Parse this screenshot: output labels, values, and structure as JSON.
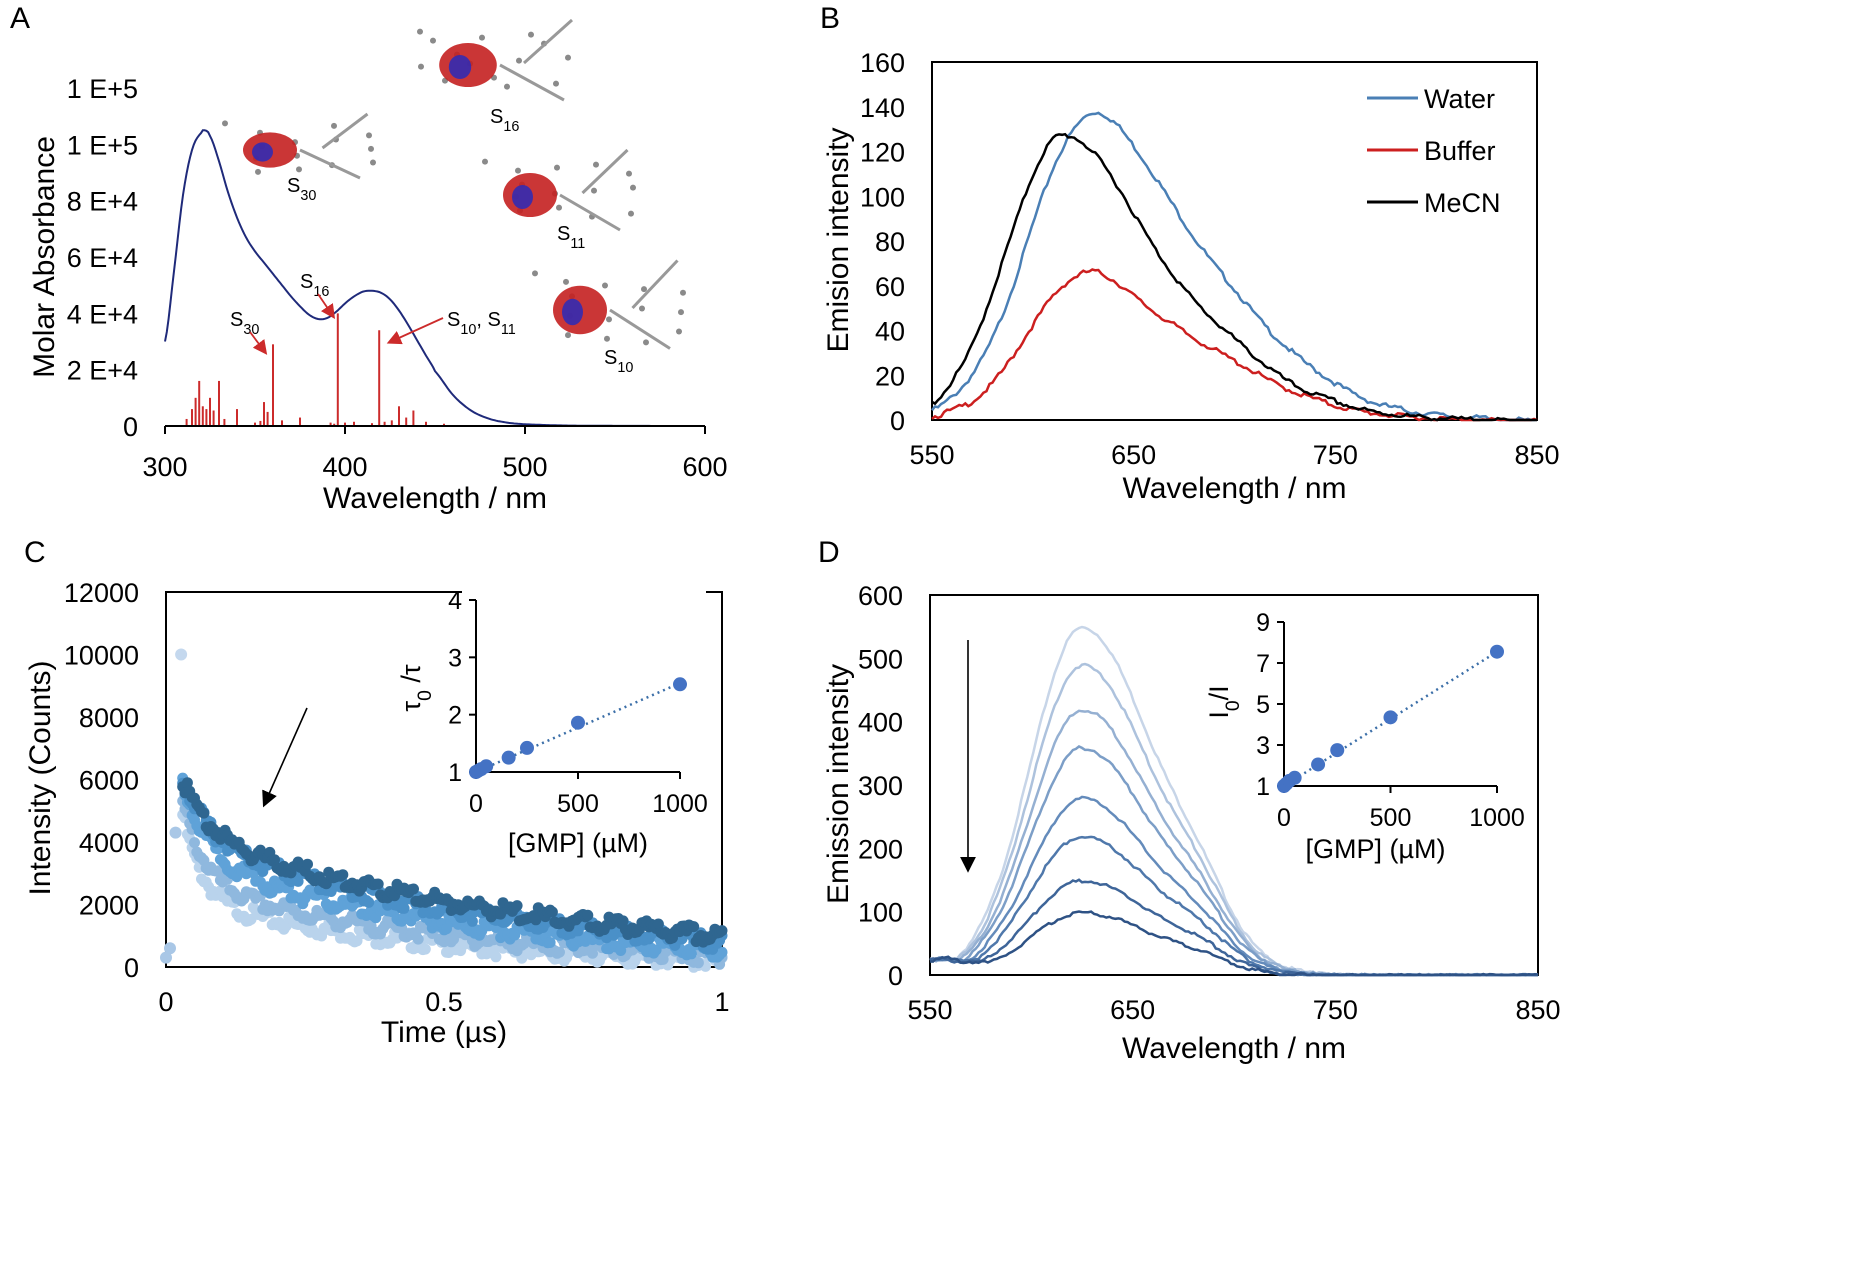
{
  "colors": {
    "absorbance": "#1f2a7a",
    "sticks": "#cc2b2b",
    "water": "#4a7fb5",
    "buffer": "#cc1f1f",
    "mecn": "#000000",
    "inset_points": "#4472c4"
  },
  "chart_data": [
    {
      "panel": "A",
      "type": "line",
      "xlabel": "Wavelength / nm",
      "ylabel": "Molar Absorbance",
      "xlim": [
        300,
        600
      ],
      "ylim": [
        0,
        120000
      ],
      "xticks": [
        "300",
        "400",
        "500",
        "600"
      ],
      "yticks": [
        "0",
        "2 E+4",
        "4 E+4",
        "6 E+4",
        "8 E+4",
        "1 E+5",
        "1 E+5"
      ],
      "series": [
        {
          "x": [
            300,
            305,
            310,
            315,
            320,
            322,
            325,
            330,
            335,
            340,
            345,
            350,
            355,
            360,
            365,
            370,
            375,
            380,
            385,
            390,
            395,
            400,
            405,
            410,
            415,
            420,
            425,
            430,
            435,
            440,
            445,
            450,
            460,
            470,
            480,
            490,
            500,
            520,
            540,
            560,
            580,
            600
          ],
          "values": [
            30000,
            55000,
            82000,
            98000,
            104000,
            105000,
            103000,
            94000,
            83000,
            74000,
            67000,
            62000,
            58000,
            54000,
            50000,
            46000,
            42500,
            39500,
            38000,
            38300,
            40500,
            43500,
            46000,
            47700,
            48000,
            47300,
            45000,
            41000,
            36000,
            30500,
            25000,
            19500,
            11000,
            5500,
            2600,
            1200,
            600,
            200,
            80,
            30,
            10,
            0
          ]
        }
      ],
      "sticks": {
        "x": [
          312,
          315,
          317,
          319,
          321,
          323,
          325,
          327,
          330,
          333,
          340,
          350,
          353,
          355,
          357,
          360,
          365,
          375,
          392,
          394,
          396,
          400,
          405,
          415,
          419,
          422,
          426,
          430,
          434,
          438,
          445,
          455
        ],
        "values": [
          2500,
          6000,
          10000,
          16000,
          7000,
          6000,
          10000,
          5500,
          16000,
          2500,
          6000,
          1200,
          1800,
          8500,
          5000,
          29000,
          2000,
          3000,
          1200,
          800,
          40000,
          1200,
          1500,
          1000,
          34000,
          1500,
          2000,
          7000,
          3000,
          5500,
          1500,
          800
        ]
      },
      "annotations": [
        {
          "base": "S",
          "sub": "30"
        },
        {
          "base": "S",
          "sub": "16"
        },
        {
          "base": "S",
          "sub": "10",
          "rest": ", ",
          "base2": "S",
          "sub2": "11"
        }
      ],
      "structure_labels": [
        {
          "base": "S",
          "sub": "30"
        },
        {
          "base": "S",
          "sub": "16"
        },
        {
          "base": "S",
          "sub": "11"
        },
        {
          "base": "S",
          "sub": "10"
        }
      ]
    },
    {
      "panel": "B",
      "type": "line",
      "xlabel": "Wavelength / nm",
      "ylabel": "Emision intensity",
      "xlim": [
        550,
        850
      ],
      "ylim": [
        0,
        160
      ],
      "xticks": [
        "550",
        "650",
        "750",
        "850"
      ],
      "yticks": [
        "0",
        "20",
        "40",
        "60",
        "80",
        "100",
        "120",
        "140",
        "160"
      ],
      "legend": "top-right",
      "categories_x": [
        550,
        560,
        570,
        580,
        590,
        600,
        610,
        620,
        630,
        640,
        650,
        660,
        670,
        680,
        690,
        700,
        710,
        720,
        730,
        740,
        750,
        760,
        770,
        780,
        790,
        800,
        810,
        820,
        830,
        840,
        850
      ],
      "series": [
        {
          "name": "Water",
          "values": [
            5,
            11,
            21,
            37,
            60,
            88,
            113,
            130,
            138,
            134,
            123,
            110,
            96,
            82,
            70,
            59,
            48,
            38,
            30,
            23,
            17,
            12,
            8,
            6,
            4,
            3,
            2,
            1.5,
            1,
            0.5,
            0
          ]
        },
        {
          "name": "Buffer",
          "values": [
            2,
            5,
            9,
            17,
            29,
            43,
            56,
            64,
            67,
            63,
            56,
            49,
            43,
            37,
            32,
            27,
            22,
            17,
            13,
            10,
            7,
            5,
            3.5,
            2.5,
            1.8,
            1.2,
            0.8,
            0.5,
            0.3,
            0.1,
            0
          ]
        },
        {
          "name": "MeCN",
          "values": [
            8,
            18,
            34,
            58,
            85,
            110,
            126,
            127,
            120,
            108,
            93,
            78,
            65,
            54,
            45,
            37,
            29,
            22,
            16,
            12,
            9,
            6,
            4,
            3,
            2,
            1.5,
            1,
            0.6,
            0.3,
            0.1,
            0
          ]
        }
      ]
    },
    {
      "panel": "C",
      "type": "scatter",
      "xlabel": "Time (µs)",
      "ylabel": "Intensity (Counts)",
      "xlim": [
        0,
        1
      ],
      "ylim": [
        0,
        12000
      ],
      "xticks": [
        "0",
        "0.5",
        "1"
      ],
      "yticks": [
        "0",
        "2000",
        "4000",
        "6000",
        "8000",
        "10000",
        "12000"
      ],
      "decays": [
        {
          "peak": 6300,
          "amp1": 1800,
          "tau1": 0.05,
          "amp2": 4300,
          "tau2": 0.72,
          "color": "#2f6690"
        },
        {
          "peak": 6400,
          "amp1": 2100,
          "tau1": 0.05,
          "amp2": 4100,
          "tau2": 0.65,
          "color": "#4a90c8"
        },
        {
          "peak": 6000,
          "amp1": 2600,
          "tau1": 0.05,
          "amp2": 3400,
          "tau2": 0.6,
          "color": "#5fa2d8"
        },
        {
          "peak": 5500,
          "amp1": 2700,
          "tau1": 0.04,
          "amp2": 2700,
          "tau2": 0.55,
          "color": "#8fb8de"
        },
        {
          "peak": 5000,
          "amp1": 2800,
          "tau1": 0.035,
          "amp2": 2200,
          "tau2": 0.5,
          "color": "#b9d3ec"
        }
      ],
      "outliers": {
        "x": [
          0.0,
          0.0,
          0.01,
          0.02
        ],
        "values": [
          600,
          300,
          4300,
          10000
        ]
      },
      "inset": {
        "type": "scatter",
        "xlabel": "[GMP] (µM)",
        "ylabel_base": "τ",
        "ylabel_sub": "0",
        "ylabel_rest": " /τ",
        "xlim": [
          0,
          1000
        ],
        "ylim": [
          1,
          4
        ],
        "xticks": [
          "0",
          "500",
          "1000"
        ],
        "yticks": [
          "1",
          "2",
          "3",
          "4"
        ],
        "x": [
          0,
          10,
          25,
          50,
          160,
          250,
          500,
          1000
        ],
        "values": [
          1.0,
          1.02,
          1.05,
          1.1,
          1.25,
          1.42,
          1.86,
          2.53
        ],
        "fit": {
          "x": [
            0,
            1000
          ],
          "values": [
            1.0,
            2.55
          ]
        }
      }
    },
    {
      "panel": "D",
      "type": "line",
      "xlabel": "Wavelength / nm",
      "ylabel": "Emission intensity",
      "xlim": [
        550,
        850
      ],
      "ylim": [
        0,
        600
      ],
      "xticks": [
        "550",
        "650",
        "750",
        "850"
      ],
      "yticks": [
        "0",
        "100",
        "200",
        "300",
        "400",
        "500",
        "600"
      ],
      "peaks": [
        550,
        490,
        420,
        360,
        280,
        220,
        150,
        100
      ],
      "series_colors": [
        "#c7d5e8",
        "#adc2dd",
        "#95b0d2",
        "#7c9ec7",
        "#648bbb",
        "#4f78ab",
        "#3e6599",
        "#2e5285"
      ],
      "inset": {
        "type": "scatter",
        "xlabel": "[GMP] (µM)",
        "ylabel_base": "I",
        "ylabel_sub": "0",
        "ylabel_rest": "/I",
        "xlim": [
          0,
          1000
        ],
        "ylim": [
          1,
          9
        ],
        "xticks": [
          "0",
          "500",
          "1000"
        ],
        "yticks": [
          "1",
          "3",
          "5",
          "7",
          "9"
        ],
        "x": [
          0,
          10,
          25,
          50,
          160,
          250,
          500,
          1000
        ],
        "values": [
          1.0,
          1.1,
          1.25,
          1.4,
          2.05,
          2.75,
          4.35,
          7.55
        ],
        "fit": {
          "x": [
            0,
            1000
          ],
          "values": [
            1.0,
            7.55
          ]
        }
      }
    }
  ],
  "panel_labels": [
    "A",
    "B",
    "C",
    "D"
  ]
}
